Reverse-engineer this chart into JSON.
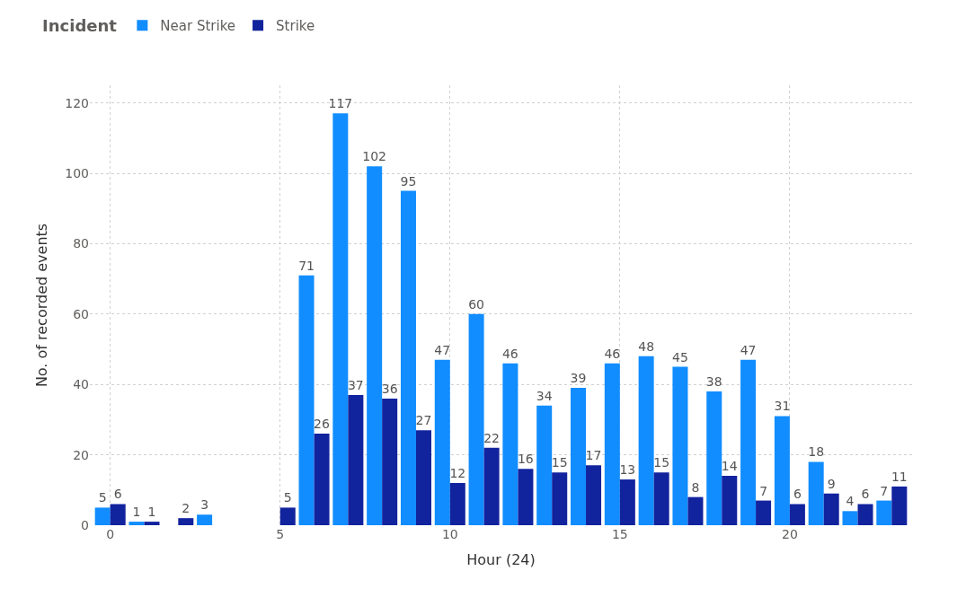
{
  "chart_data": {
    "type": "bar",
    "xlabel": "Hour (24)",
    "ylabel": "No. of recorded events",
    "legend_title": "Incident",
    "x": [
      0,
      1,
      2,
      3,
      4,
      5,
      6,
      7,
      8,
      9,
      10,
      11,
      12,
      13,
      14,
      15,
      16,
      17,
      18,
      19,
      20,
      21,
      22,
      23
    ],
    "series": [
      {
        "name": "Near Strike",
        "color": "#118dff",
        "values": [
          5,
          1,
          null,
          3,
          null,
          null,
          71,
          117,
          102,
          95,
          47,
          60,
          46,
          34,
          39,
          46,
          48,
          45,
          38,
          47,
          31,
          18,
          4,
          7
        ]
      },
      {
        "name": "Strike",
        "color": "#12239e",
        "values": [
          6,
          1,
          2,
          null,
          null,
          5,
          26,
          37,
          36,
          27,
          12,
          22,
          16,
          15,
          17,
          13,
          15,
          8,
          14,
          7,
          6,
          9,
          6,
          11
        ]
      }
    ],
    "xlim": [
      -0.6,
      23.6
    ],
    "xticks": [
      0,
      5,
      10,
      15,
      20
    ],
    "ylim": [
      0,
      125
    ],
    "yticks": [
      0,
      20,
      40,
      60,
      80,
      100,
      120
    ],
    "grid": true,
    "legend": "top left",
    "data_labels": true
  }
}
